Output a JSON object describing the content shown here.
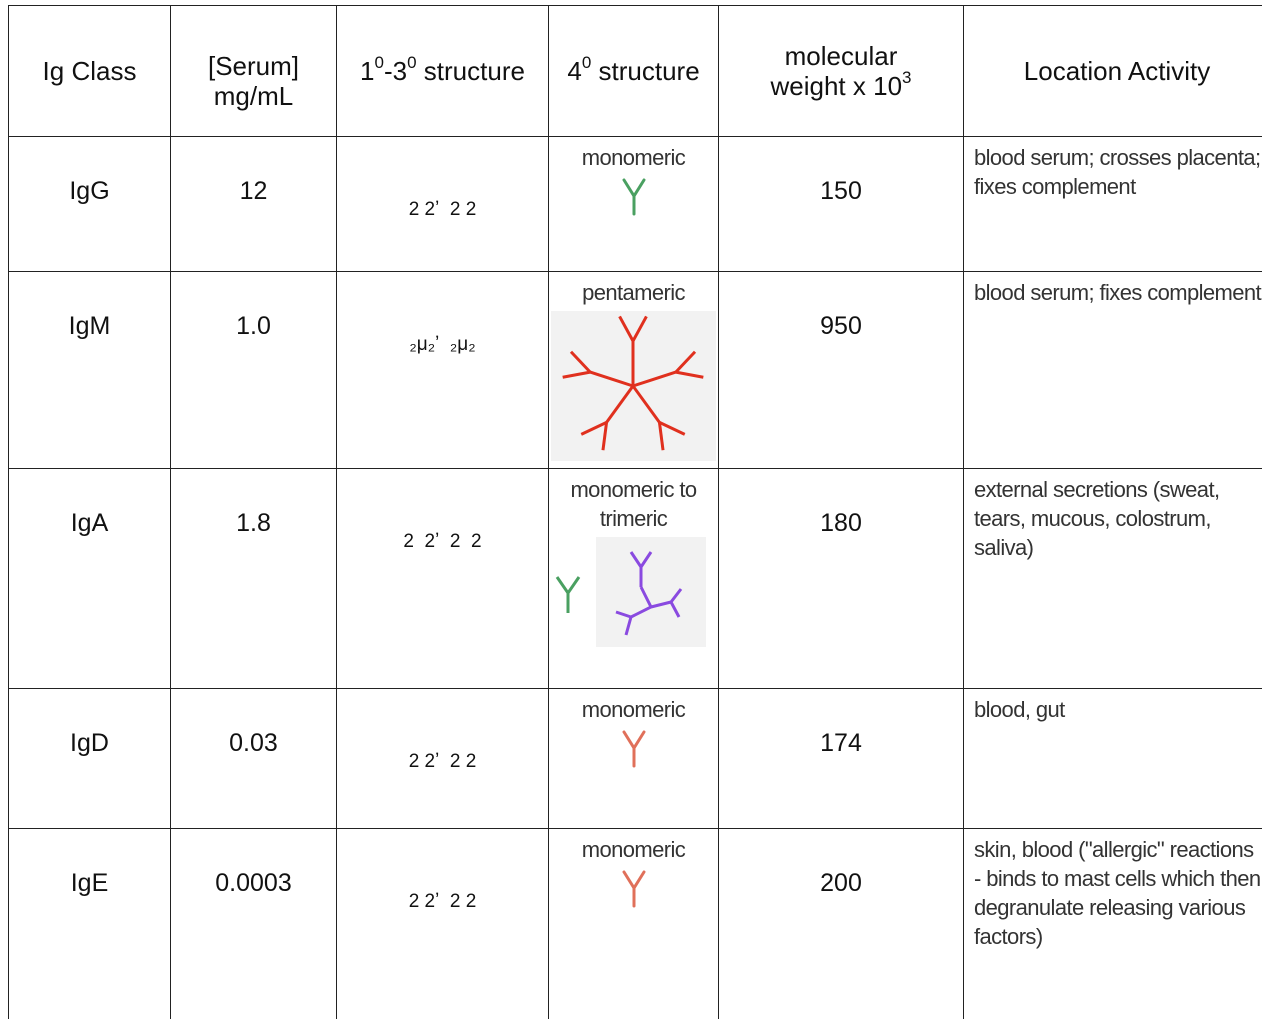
{
  "table": {
    "header": [
      [
        {
          "text": "Ig Class"
        }
      ],
      [
        {
          "text": "[Serum] mg/mL"
        }
      ],
      [
        {
          "text": "1"
        },
        {
          "sup": "0"
        },
        {
          "text": "-3"
        },
        {
          "sup": "0"
        },
        {
          "text": " structure"
        }
      ],
      [
        {
          "text": "4"
        },
        {
          "sup": "0"
        },
        {
          "text": " structure"
        }
      ],
      [
        {
          "text": "molecular weight x 10"
        },
        {
          "sup": "3"
        }
      ],
      [
        {
          "text": "Location Activity"
        }
      ]
    ],
    "rows": [
      {
        "class": "IgG",
        "serum": "12",
        "chains": "2 2ʼ  2 2",
        "quaternary": "monomeric",
        "mw": "150",
        "location": "blood serum;  crosses placenta; fixes complement"
      },
      {
        "class": "IgM",
        "serum": "1.0",
        "chains": "₂μ₂ʼ  ₂μ₂",
        "quaternary": "pentameric",
        "mw": "950",
        "location": "blood serum; fixes complement"
      },
      {
        "class": "IgA",
        "serum": "1.8",
        "chains": "2  2ʼ  2  2",
        "quaternary": "monomeric to trimeric",
        "mw": "180",
        "location": "external secretions (sweat, tears, mucous, colostrum, saliva)"
      },
      {
        "class": "IgD",
        "serum": "0.03",
        "chains": "2 2ʼ  2 2",
        "quaternary": "monomeric",
        "mw": "174",
        "location": "blood, gut"
      },
      {
        "class": "IgE",
        "serum": "0.0003",
        "chains": "2 2ʼ  2 2",
        "quaternary": "monomeric",
        "mw": "200",
        "location": "skin, blood (\"allergic\" reactions - binds to mast cells which then degranulate releasing various factors)"
      }
    ]
  }
}
